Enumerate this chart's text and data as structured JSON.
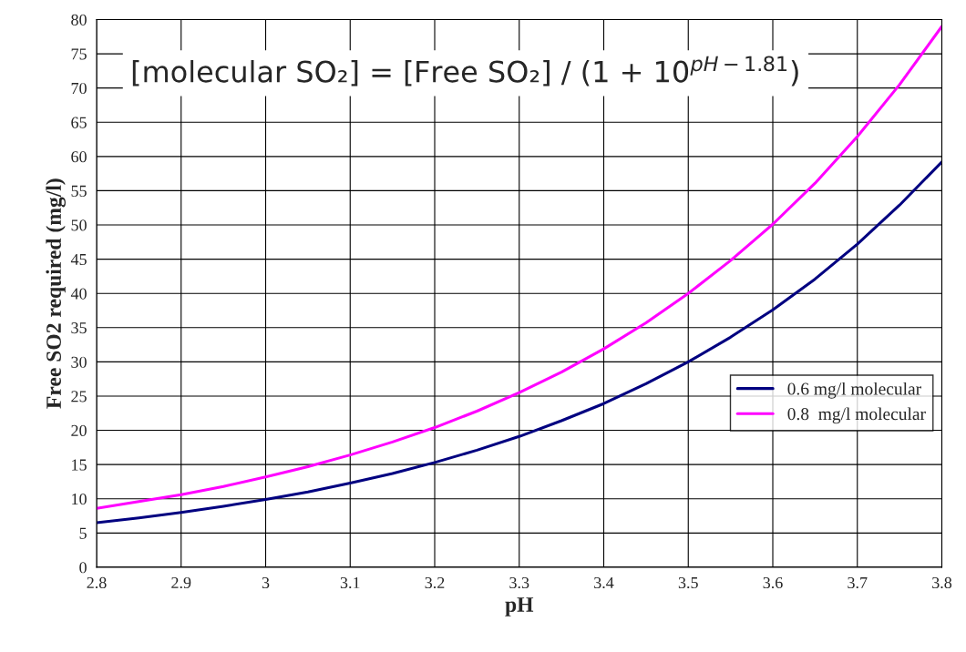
{
  "chart_data": {
    "type": "line",
    "xlabel": "pH",
    "ylabel": "Free SO2 required (mg/l)",
    "annotations": [
      "[molecular SO₂] = [Free SO₂] / (1 + 10$^{pH−1.81}$)"
    ],
    "x": [
      2.8,
      2.85,
      2.9,
      2.95,
      3.0,
      3.05,
      3.1,
      3.15,
      3.2,
      3.25,
      3.3,
      3.35,
      3.4,
      3.45,
      3.5,
      3.55,
      3.6,
      3.65,
      3.7,
      3.75,
      3.8
    ],
    "series": [
      {
        "name": "0.6 mg/l molecular",
        "color": "#000080",
        "values": [
          6.5,
          7.2,
          8.0,
          8.9,
          9.9,
          11.0,
          12.3,
          13.7,
          15.3,
          17.1,
          19.1,
          21.4,
          23.9,
          26.8,
          30.0,
          33.6,
          37.6,
          42.1,
          47.2,
          52.9,
          59.2
        ]
      },
      {
        "name": "0.8  mg/l molecular",
        "color": "#ff00ff",
        "values": [
          8.6,
          9.6,
          10.6,
          11.8,
          13.2,
          14.7,
          16.4,
          18.3,
          20.4,
          22.8,
          25.5,
          28.5,
          31.9,
          35.7,
          40.0,
          44.8,
          50.1,
          56.1,
          62.9,
          70.5,
          79.0
        ]
      }
    ],
    "xlim": [
      2.8,
      3.8
    ],
    "xticks": [
      2.8,
      2.9,
      3,
      3.1,
      3.2,
      3.3,
      3.4,
      3.5,
      3.6,
      3.7,
      3.8
    ],
    "ylim": [
      0,
      80
    ],
    "yticks": [
      0,
      5,
      10,
      15,
      20,
      25,
      30,
      35,
      40,
      45,
      50,
      55,
      60,
      65,
      70,
      75,
      80
    ],
    "grid": true,
    "legend": "right",
    "marker": "none",
    "line_style": "solid"
  }
}
